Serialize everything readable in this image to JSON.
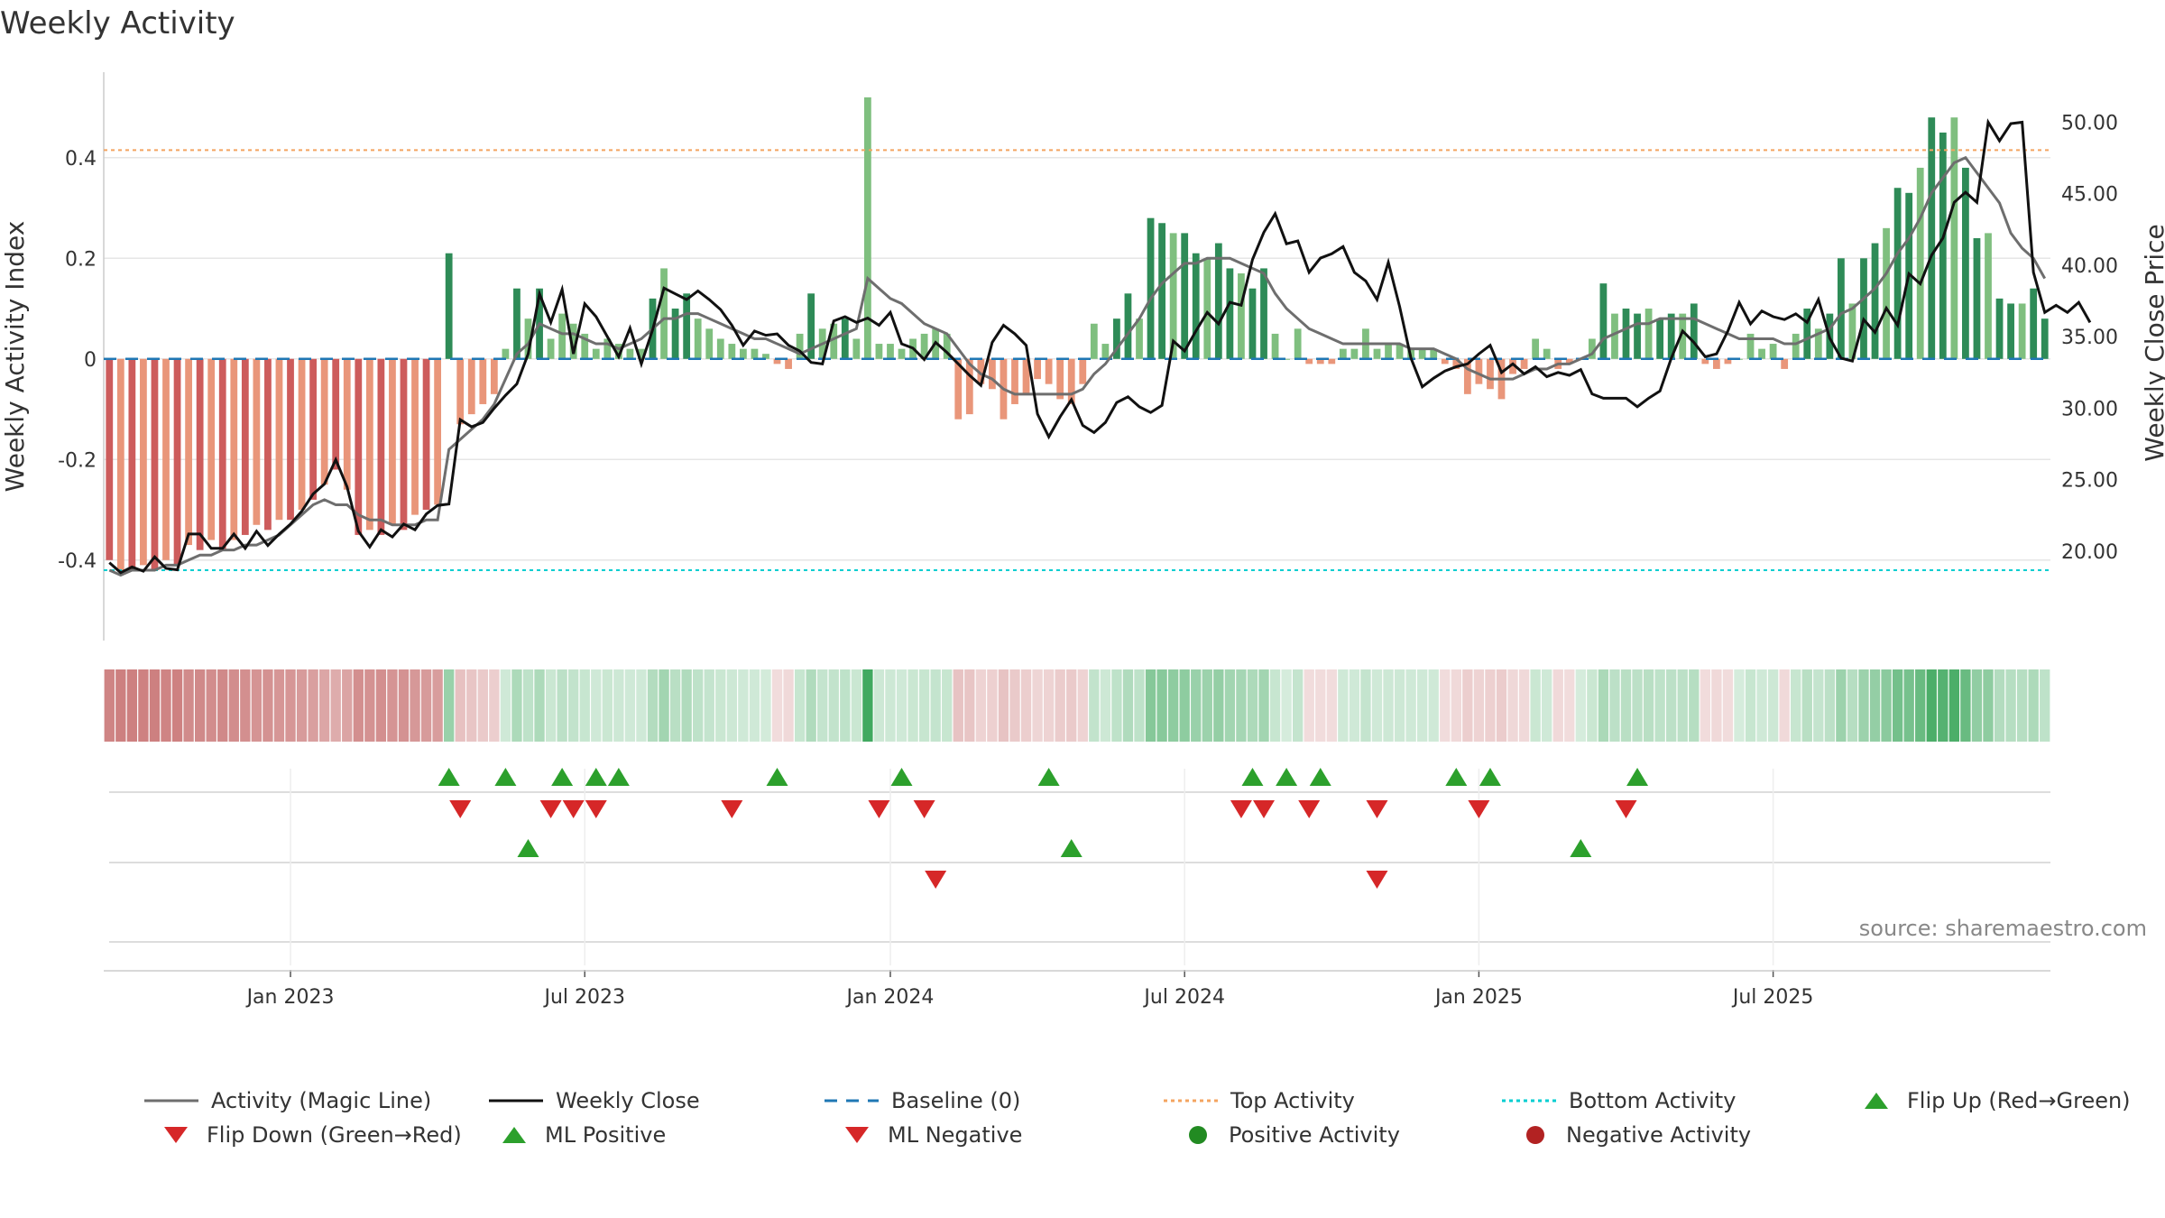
{
  "title": "Weekly Activity",
  "source": "source: sharemaestro.com",
  "colors": {
    "green_dark": "#2e8b57",
    "green_light": "#7fbf7f",
    "red_dark": "#cd5c5c",
    "red_light": "#e9967a",
    "magic_line": "#6e6e6e",
    "close_line": "#111111",
    "baseline": "#1f77b4",
    "top_line": "#f4a460",
    "bottom_line": "#00ced1",
    "marker_green": "#2ca02c",
    "marker_red": "#d62728",
    "dot_red": "#b22222"
  },
  "chart_data": {
    "type": "bar",
    "title": "Weekly Activity",
    "ylabel": "Weekly Activity Index",
    "y2label": "Weekly Close Price",
    "ylim": [
      -0.56,
      0.57
    ],
    "y2lim": [
      13.75,
      53.5
    ],
    "yticks": [
      -0.4,
      -0.2,
      0,
      0.2,
      0.4
    ],
    "ytick_labels": [
      "-0.4",
      "-0.2",
      "0",
      "0.2",
      "0.4"
    ],
    "y2ticks": [
      20,
      25,
      30,
      35,
      40,
      45,
      50
    ],
    "y2tick_labels": [
      "20.00",
      "25.00",
      "30.00",
      "35.00",
      "40.00",
      "45.00",
      "50.00"
    ],
    "x_ticks": [
      {
        "label": "Jan 2023",
        "week": 16
      },
      {
        "label": "Jul 2023",
        "week": 42
      },
      {
        "label": "Jan 2024",
        "week": 69
      },
      {
        "label": "Jul 2024",
        "week": 95
      },
      {
        "label": "Jan 2025",
        "week": 121
      },
      {
        "label": "Jul 2025",
        "week": 147
      }
    ],
    "top_activity": 0.415,
    "bottom_activity": -0.42,
    "baseline": 0,
    "activity": [
      -0.4,
      -0.42,
      -0.42,
      -0.41,
      -0.42,
      -0.4,
      -0.41,
      -0.37,
      -0.38,
      -0.36,
      -0.38,
      -0.36,
      -0.35,
      -0.33,
      -0.34,
      -0.32,
      -0.32,
      -0.3,
      -0.28,
      -0.25,
      -0.22,
      -0.26,
      -0.35,
      -0.34,
      -0.35,
      -0.33,
      -0.34,
      -0.31,
      -0.3,
      -0.29,
      0.21,
      -0.13,
      -0.11,
      -0.09,
      -0.07,
      0.02,
      0.14,
      0.08,
      0.14,
      0.04,
      0.09,
      0.07,
      0.05,
      0.02,
      0.04,
      0.03,
      0.02,
      0.02,
      0.12,
      0.18,
      0.1,
      0.13,
      0.08,
      0.06,
      0.04,
      0.03,
      0.02,
      0.02,
      0.01,
      -0.01,
      -0.02,
      0.05,
      0.13,
      0.06,
      0.07,
      0.08,
      0.04,
      0.52,
      0.03,
      0.03,
      0.02,
      0.04,
      0.05,
      0.06,
      0.05,
      -0.12,
      -0.11,
      -0.05,
      -0.06,
      -0.12,
      -0.09,
      -0.07,
      -0.04,
      -0.05,
      -0.08,
      -0.09,
      -0.05,
      0.07,
      0.03,
      0.08,
      0.13,
      0.08,
      0.28,
      0.27,
      0.25,
      0.25,
      0.21,
      0.2,
      0.23,
      0.18,
      0.17,
      0.14,
      0.18,
      0.05,
      0.0,
      0.06,
      -0.01,
      -0.01,
      -0.01,
      0.02,
      0.02,
      0.06,
      0.02,
      0.03,
      0.03,
      0.02,
      0.02,
      0.02,
      -0.01,
      -0.02,
      -0.07,
      -0.05,
      -0.06,
      -0.08,
      -0.03,
      -0.02,
      0.04,
      0.02,
      -0.02,
      -0.01,
      0.0,
      0.04,
      0.15,
      0.09,
      0.1,
      0.09,
      0.1,
      0.08,
      0.09,
      0.09,
      0.11,
      -0.01,
      -0.02,
      -0.01,
      0.0,
      0.05,
      0.02,
      0.03,
      -0.02,
      0.05,
      0.1,
      0.06,
      0.09,
      0.2,
      0.11,
      0.2,
      0.23,
      0.26,
      0.34,
      0.33,
      0.38,
      0.48,
      0.45,
      0.48,
      0.38,
      0.24,
      0.25,
      0.12,
      0.11,
      0.11,
      0.14,
      0.08
    ],
    "magic_line": [
      -0.42,
      -0.43,
      -0.42,
      -0.42,
      -0.42,
      -0.41,
      -0.41,
      -0.4,
      -0.39,
      -0.39,
      -0.38,
      -0.38,
      -0.37,
      -0.37,
      -0.36,
      -0.35,
      -0.33,
      -0.31,
      -0.29,
      -0.28,
      -0.29,
      -0.29,
      -0.31,
      -0.32,
      -0.32,
      -0.33,
      -0.33,
      -0.33,
      -0.32,
      -0.32,
      -0.18,
      -0.16,
      -0.14,
      -0.12,
      -0.09,
      -0.04,
      0.01,
      0.03,
      0.07,
      0.06,
      0.05,
      0.05,
      0.04,
      0.03,
      0.03,
      0.02,
      0.03,
      0.04,
      0.06,
      0.08,
      0.08,
      0.09,
      0.09,
      0.08,
      0.07,
      0.06,
      0.05,
      0.04,
      0.04,
      0.03,
      0.02,
      0.01,
      0.02,
      0.03,
      0.04,
      0.05,
      0.06,
      0.16,
      0.14,
      0.12,
      0.11,
      0.09,
      0.07,
      0.06,
      0.05,
      0.02,
      -0.01,
      -0.03,
      -0.04,
      -0.06,
      -0.07,
      -0.07,
      -0.07,
      -0.07,
      -0.07,
      -0.07,
      -0.06,
      -0.03,
      -0.01,
      0.02,
      0.05,
      0.08,
      0.12,
      0.15,
      0.17,
      0.19,
      0.19,
      0.2,
      0.2,
      0.2,
      0.19,
      0.18,
      0.17,
      0.13,
      0.1,
      0.08,
      0.06,
      0.05,
      0.04,
      0.03,
      0.03,
      0.03,
      0.03,
      0.03,
      0.03,
      0.02,
      0.02,
      0.02,
      0.01,
      0.0,
      -0.02,
      -0.03,
      -0.04,
      -0.04,
      -0.04,
      -0.03,
      -0.02,
      -0.02,
      -0.01,
      -0.01,
      0.0,
      0.01,
      0.04,
      0.05,
      0.06,
      0.07,
      0.07,
      0.08,
      0.08,
      0.08,
      0.08,
      0.07,
      0.06,
      0.05,
      0.04,
      0.04,
      0.04,
      0.04,
      0.03,
      0.03,
      0.04,
      0.05,
      0.06,
      0.09,
      0.1,
      0.12,
      0.14,
      0.17,
      0.21,
      0.24,
      0.28,
      0.33,
      0.36,
      0.39,
      0.4,
      0.37,
      0.34,
      0.31,
      0.25,
      0.22,
      0.2,
      0.16
    ],
    "weekly_close": [
      19.2,
      18.5,
      18.9,
      18.6,
      19.6,
      18.8,
      18.7,
      21.2,
      21.2,
      20.2,
      20.2,
      21.2,
      20.2,
      21.4,
      20.4,
      21.2,
      21.9,
      22.8,
      24.0,
      24.7,
      26.4,
      24.5,
      21.4,
      20.3,
      21.5,
      21.0,
      21.9,
      21.5,
      22.6,
      23.2,
      23.3,
      29.2,
      28.7,
      29.0,
      30.0,
      30.9,
      31.7,
      33.8,
      38.0,
      36.0,
      38.3,
      33.8,
      37.3,
      36.4,
      35.0,
      33.6,
      35.6,
      33.1,
      35.5,
      38.4,
      38.0,
      37.6,
      38.2,
      37.6,
      36.9,
      35.8,
      34.4,
      35.4,
      35.1,
      35.2,
      34.4,
      34.0,
      33.2,
      33.1,
      36.1,
      36.4,
      36.0,
      36.3,
      35.8,
      36.7,
      34.5,
      34.2,
      33.4,
      34.6,
      33.9,
      33.1,
      32.3,
      31.6,
      34.6,
      35.8,
      35.2,
      34.4,
      29.6,
      28.0,
      29.4,
      30.6,
      28.8,
      28.3,
      29.0,
      30.4,
      30.8,
      30.1,
      29.7,
      30.2,
      34.7,
      34.0,
      35.4,
      36.7,
      35.9,
      37.4,
      37.2,
      40.4,
      42.3,
      43.6,
      41.5,
      41.7,
      39.5,
      40.5,
      40.8,
      41.3,
      39.5,
      38.9,
      37.6,
      40.2,
      37.1,
      33.5,
      31.5,
      32.1,
      32.6,
      32.9,
      33.1,
      33.8,
      34.4,
      32.5,
      33.1,
      32.4,
      32.9,
      32.2,
      32.5,
      32.3,
      32.7,
      31.0,
      30.7,
      30.7,
      30.7,
      30.1,
      30.7,
      31.2,
      33.5,
      35.4,
      34.6,
      33.6,
      33.8,
      35.4,
      37.4,
      35.9,
      36.8,
      36.4,
      36.2,
      36.6,
      36.0,
      37.6,
      34.9,
      33.5,
      33.3,
      36.2,
      35.3,
      37.0,
      35.8,
      39.4,
      38.7,
      40.7,
      41.9,
      44.4,
      45.1,
      44.4,
      50.0,
      48.7,
      49.9,
      50.0,
      39.5,
      36.7,
      37.2,
      36.7,
      37.4,
      36.0
    ],
    "flip_up": [
      30,
      35,
      40,
      43,
      45,
      59,
      70,
      83,
      101,
      104,
      107,
      119,
      122,
      135
    ],
    "flip_down": [
      31,
      39,
      41,
      43,
      55,
      68,
      72,
      100,
      102,
      106,
      112,
      121,
      134
    ],
    "ml_positive": [
      37,
      85,
      130
    ],
    "ml_negative": [
      73,
      112
    ]
  },
  "legend": [
    {
      "label": "Activity (Magic Line)",
      "icon": "grey-line-icon"
    },
    {
      "label": "Weekly Close",
      "icon": "black-line-icon"
    },
    {
      "label": "Baseline (0)",
      "icon": "blue-dashed-line-icon"
    },
    {
      "label": "Top Activity",
      "icon": "orange-dotted-line-icon"
    },
    {
      "label": "Bottom Activity",
      "icon": "cyan-dotted-line-icon"
    },
    {
      "label": "Flip Up (Red→Green)",
      "icon": "green-triangle-up-icon"
    },
    {
      "label": "Flip Down (Green→Red)",
      "icon": "red-triangle-down-icon"
    },
    {
      "label": "ML Positive",
      "icon": "green-triangle-up-icon"
    },
    {
      "label": "ML Negative",
      "icon": "red-triangle-down-icon"
    },
    {
      "label": "Positive Activity",
      "icon": "green-dot-icon"
    },
    {
      "label": "Negative Activity",
      "icon": "red-dot-icon"
    }
  ]
}
